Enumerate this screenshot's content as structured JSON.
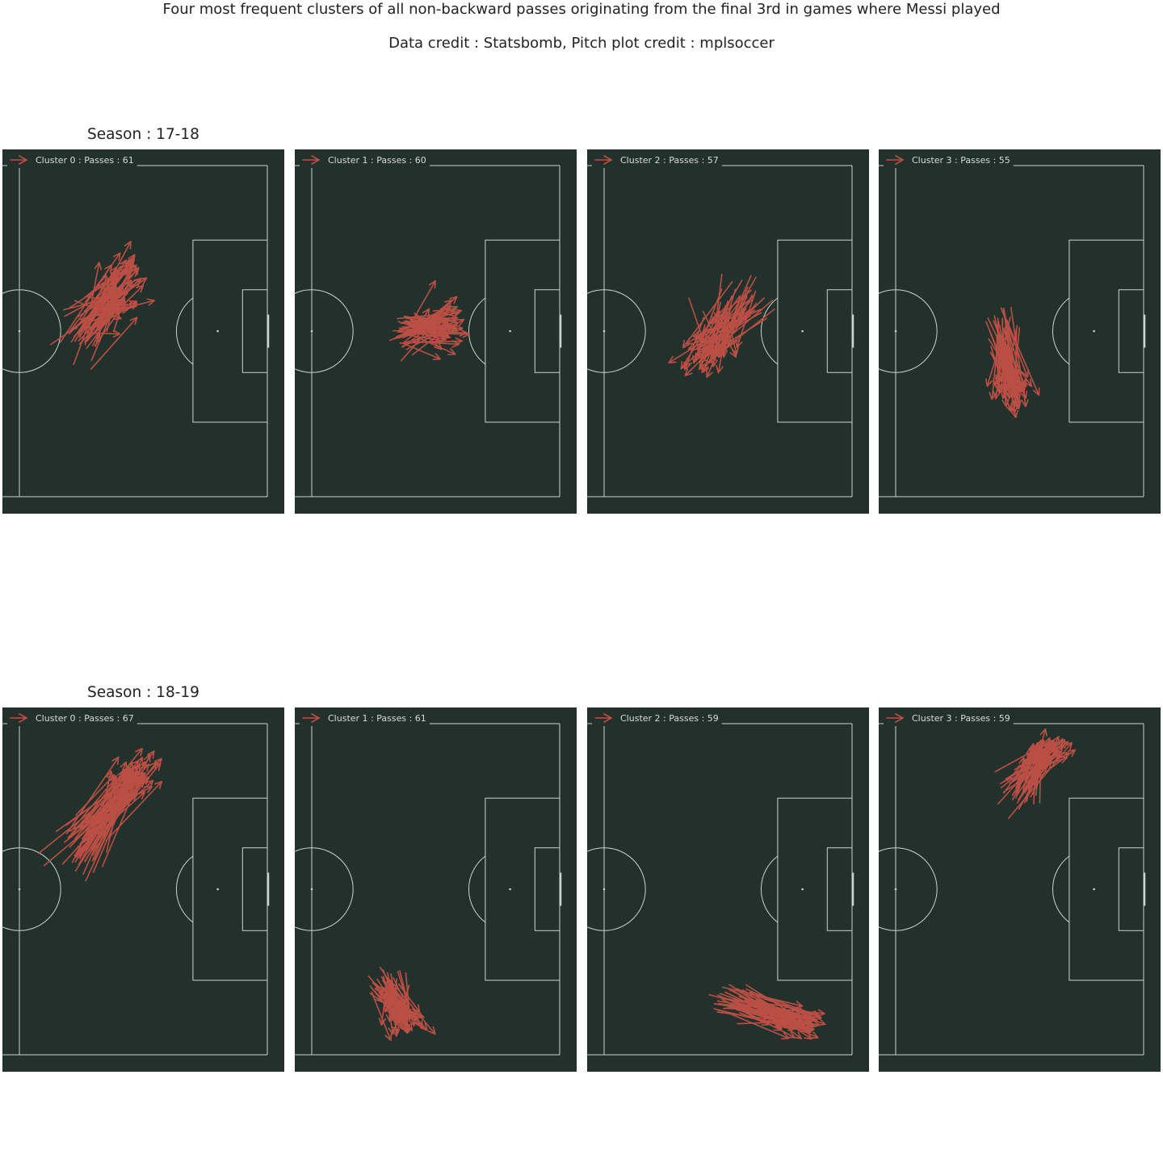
{
  "figure": {
    "title": "Four most frequent clusters of all non-backward passes originating from the final 3rd in games where Messi played",
    "subtitle": "Data credit : Statsbomb, Pitch plot credit : mplsoccer"
  },
  "colors": {
    "page_background": "#ffffff",
    "pitch_background": "#22312b",
    "pitch_lines": "#c7d5cc",
    "pass_arrows": "#ba4f45",
    "legend_text": "#d9d9d9"
  },
  "chart_data": {
    "type": "pitch-arrows",
    "pitch_type": "statsbomb",
    "pitch_view": "attacking half",
    "legend_icon": "arrow-icon",
    "legend_location": "upper left",
    "grid": false,
    "seasons": [
      {
        "title": "Season : 17-18",
        "clusters": [
          {
            "label": "Cluster 0 : Passes : 61",
            "passes": 61,
            "start_center": [
              75,
              41
            ],
            "end_center": [
              86,
              28
            ],
            "spread_start": [
              5,
              6
            ],
            "spread_end": [
              5,
              7
            ]
          },
          {
            "label": "Cluster 1 : Passes : 60",
            "passes": 60,
            "start_center": [
              83,
              40
            ],
            "end_center": [
              93,
              38
            ],
            "spread_start": [
              3,
              4
            ],
            "spread_end": [
              4,
              5
            ]
          },
          {
            "label": "Cluster 2 : Passes : 57",
            "passes": 57,
            "start_center": [
              93,
              33
            ],
            "end_center": [
              85,
              46
            ],
            "spread_start": [
              6,
              5
            ],
            "spread_end": [
              6,
              5
            ]
          },
          {
            "label": "Cluster 3 : Passes : 55",
            "passes": 55,
            "start_center": [
              85,
              40
            ],
            "end_center": [
              88,
              54
            ],
            "spread_start": [
              3,
              5
            ],
            "spread_end": [
              4,
              4
            ]
          }
        ]
      },
      {
        "title": "Season : 18-19",
        "clusters": [
          {
            "label": "Cluster 0 : Passes : 67",
            "passes": 67,
            "start_center": [
              75,
              30
            ],
            "end_center": [
              88,
              12
            ],
            "spread_start": [
              5,
              5
            ],
            "spread_end": [
              5,
              4
            ]
          },
          {
            "label": "Cluster 1 : Passes : 61",
            "passes": 61,
            "start_center": [
              78,
              63
            ],
            "end_center": [
              83,
              72
            ],
            "spread_start": [
              4,
              4
            ],
            "spread_end": [
              4,
              3
            ]
          },
          {
            "label": "Cluster 2 : Passes : 59",
            "passes": 59,
            "start_center": [
              92,
              67
            ],
            "end_center": [
              108,
              72
            ],
            "spread_start": [
              5,
              4
            ],
            "spread_end": [
              5,
              3
            ]
          },
          {
            "label": "Cluster 3 : Passes : 59",
            "passes": 59,
            "start_center": [
              90,
              16
            ],
            "end_center": [
              97,
              6
            ],
            "spread_start": [
              4,
              4
            ],
            "spread_end": [
              4,
              3
            ]
          }
        ]
      }
    ]
  }
}
